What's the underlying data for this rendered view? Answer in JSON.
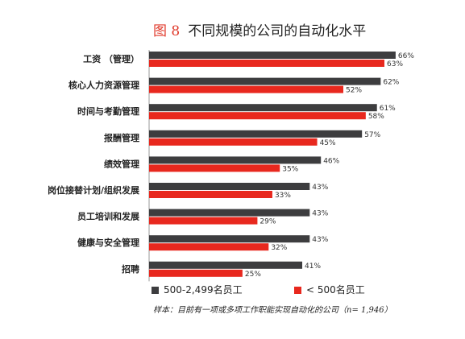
{
  "header": {
    "figure_label": "图 8",
    "title": "不同规模的公司的自动化水平"
  },
  "chart_data": {
    "type": "bar",
    "orientation": "horizontal",
    "title": "不同规模的公司的自动化水平",
    "categories": [
      "工资 （管理）",
      "核心人力资源管理",
      "时间与考勤管理",
      "报酬管理",
      "绩效管理",
      "岗位接替计划/组织发展",
      "员工培训和发展",
      "健康与安全管理",
      "招聘"
    ],
    "series": [
      {
        "name": "500-2,499名员工",
        "values": [
          66,
          62,
          61,
          57,
          46,
          43,
          43,
          43,
          41
        ],
        "labels": [
          "66%",
          "62%",
          "61%",
          "57%",
          "46%",
          "43%",
          "43%",
          "43%",
          "41%"
        ],
        "color": "#3d3d3f"
      },
      {
        "name": "< 500名员工",
        "values": [
          63,
          52,
          58,
          45,
          35,
          33,
          29,
          32,
          25
        ],
        "labels": [
          "63%",
          "52%",
          "58%",
          "45%",
          "35%",
          "33%",
          "29%",
          "32%",
          "25%"
        ],
        "color": "#e8281e"
      }
    ],
    "xlim": [
      0,
      100
    ],
    "grid": false,
    "legend_position": "bottom"
  },
  "legend": {
    "series1": "500-2,499名员工",
    "series2": "< 500名员工"
  },
  "footnote": {
    "text": "样本：目前有一项或多项工作职能实现自动化的公司（n= 1,946）"
  }
}
